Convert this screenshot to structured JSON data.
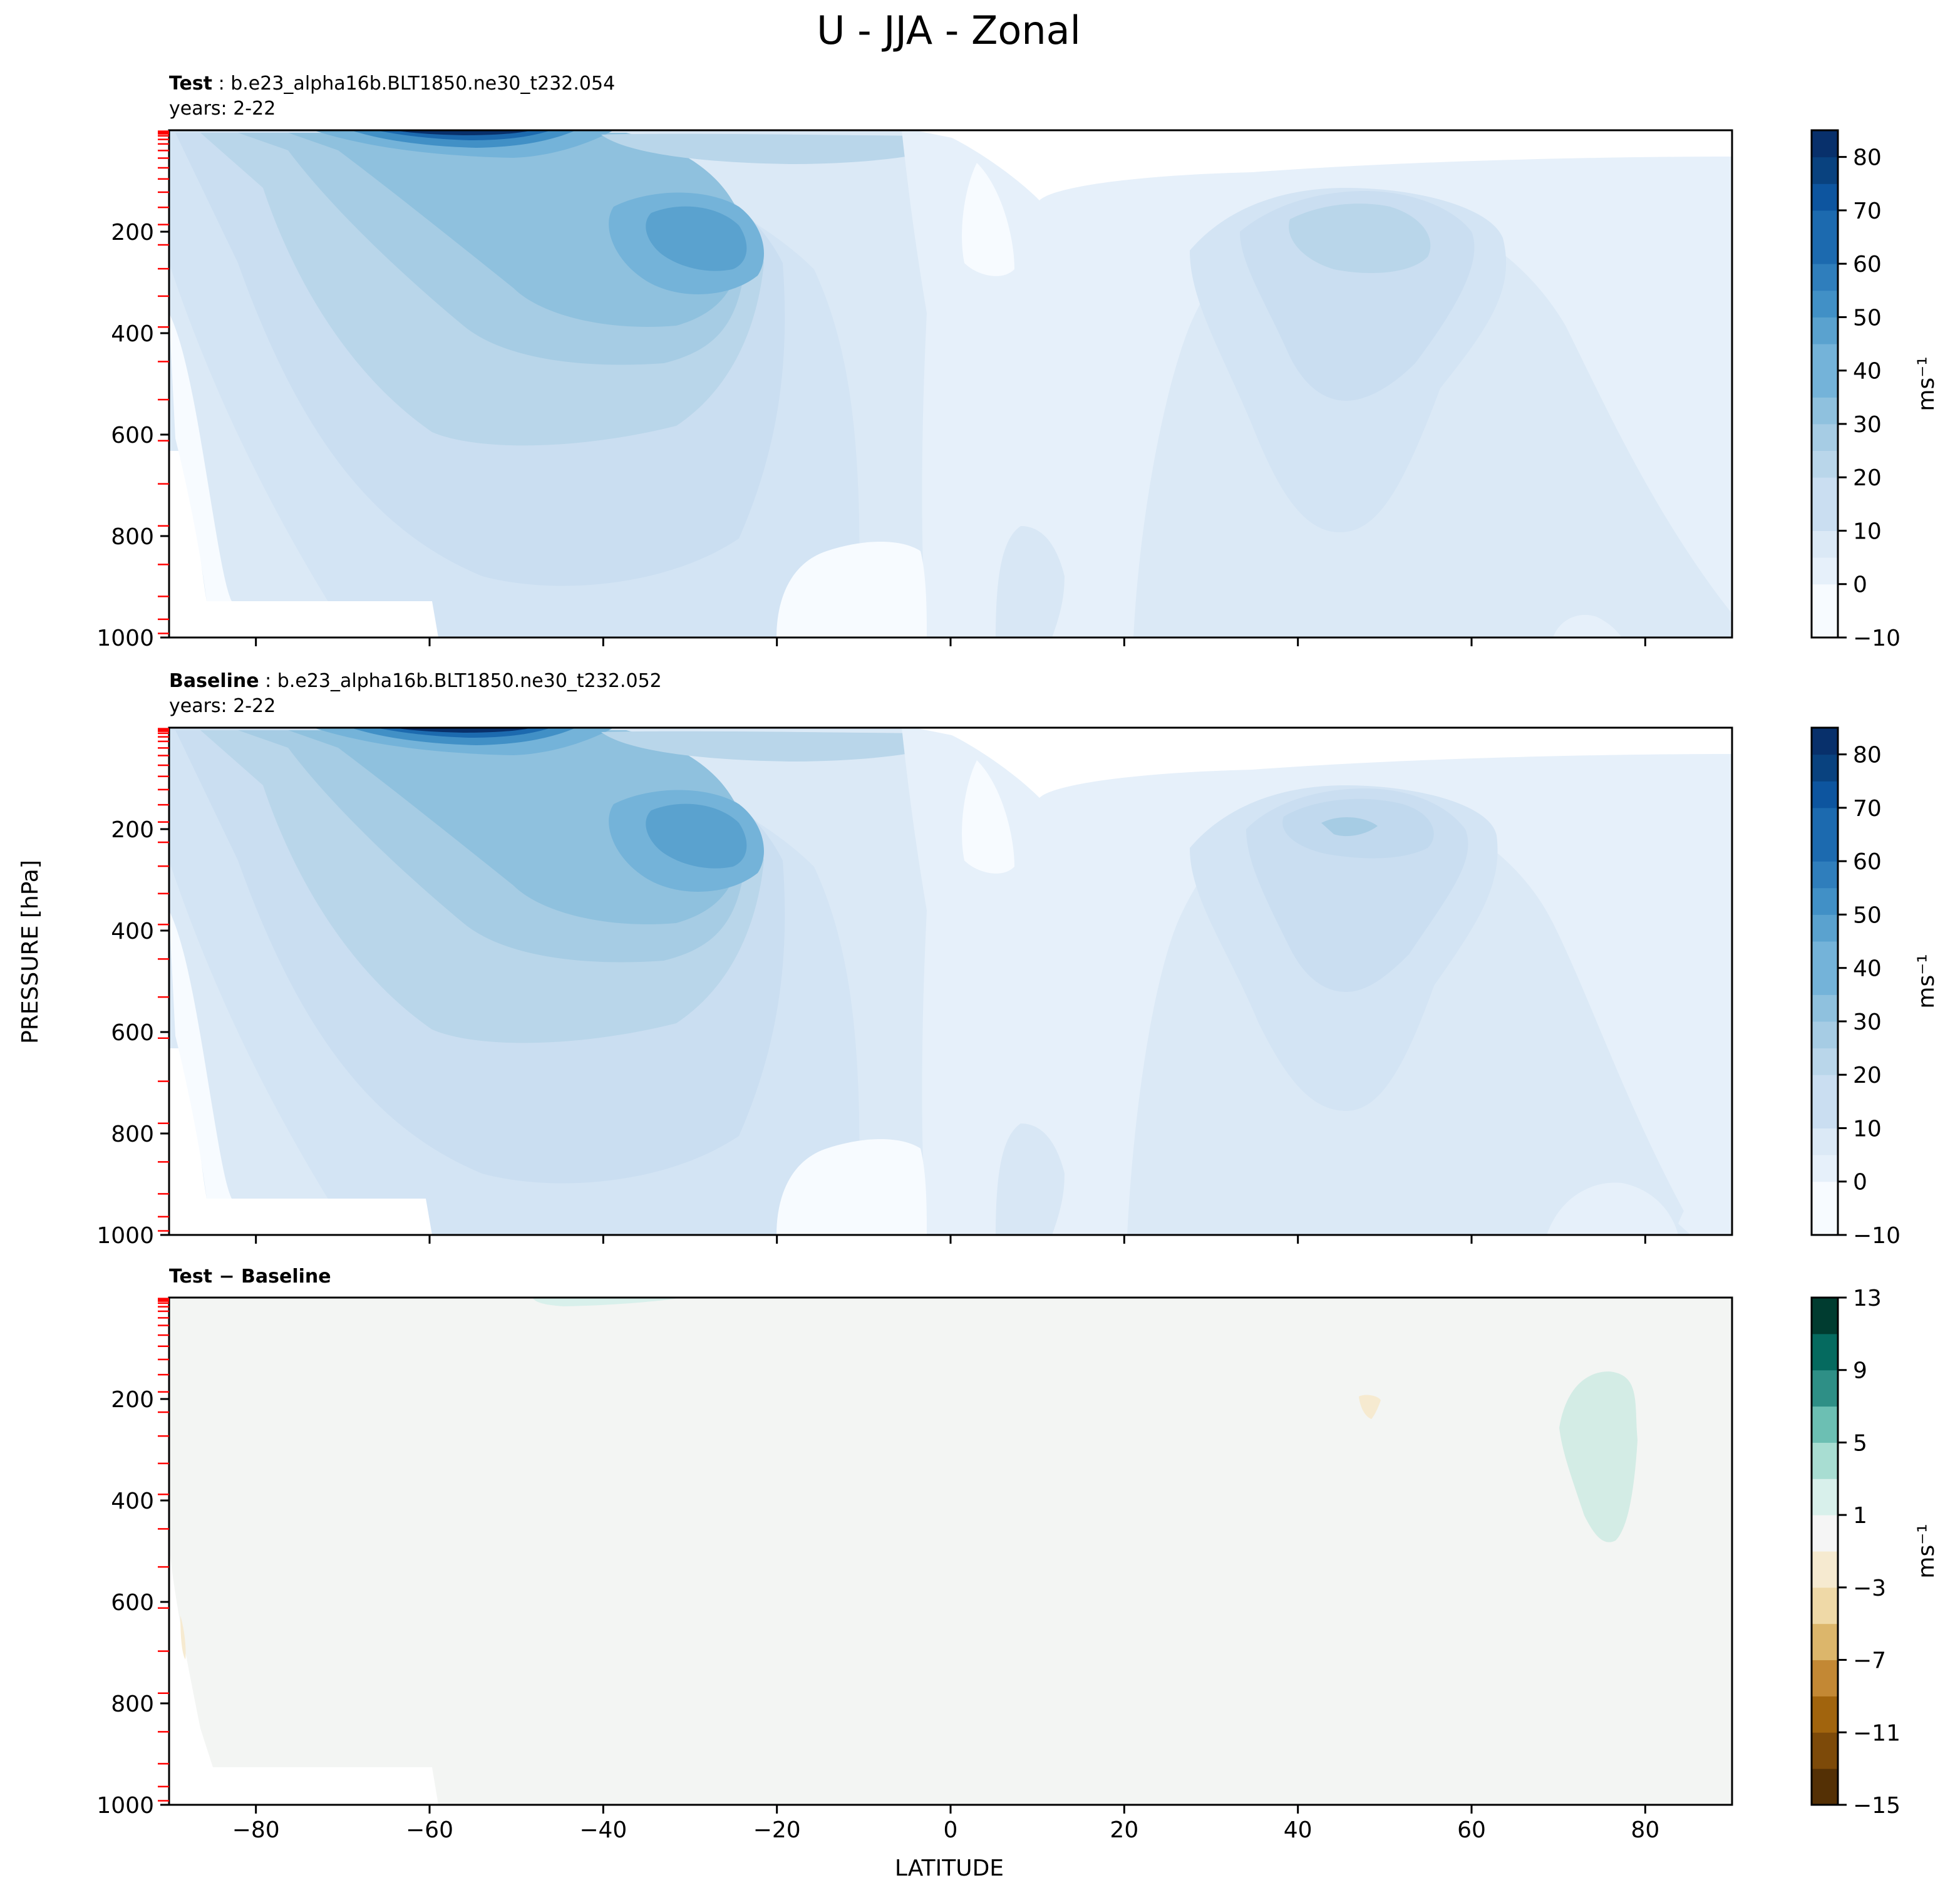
{
  "title": "U - JJA - Zonal",
  "ylabel": "PRESSURE [hPa]",
  "xlabel": "LATITUDE",
  "colors": {
    "blues": [
      "#f7fbff",
      "#e6f0fa",
      "#dbe9f6",
      "#cadef1",
      "#b9d6ea",
      "#a6cce4",
      "#8fc1de",
      "#74b3d9",
      "#5aa2cf",
      "#4190c6",
      "#2f7ebc",
      "#1c6aaf",
      "#0d559f",
      "#09427f",
      "#08306b"
    ],
    "brbg": [
      "#543005",
      "#7d4a09",
      "#a1640d",
      "#c38834",
      "#dcb66b",
      "#efd9a7",
      "#f6ead0",
      "#f5f5f5",
      "#d8f0eb",
      "#a8ddd2",
      "#6cbfb3",
      "#2e8f86",
      "#056a5f",
      "#003c30"
    ],
    "background_field": "#f3f5f3",
    "model_levels": "#ff0000"
  },
  "panels": [
    {
      "label_bold": "Test",
      "label_rest": ": b.e23_alpha16b.BLT1850.ne30_t232.054",
      "years": "years: 2-22",
      "colorbar_label": "ms⁻¹"
    },
    {
      "label_bold": "Baseline",
      "label_rest": ": b.e23_alpha16b.BLT1850.ne30_t232.052",
      "years": "years: 2-22",
      "colorbar_label": "ms⁻¹"
    },
    {
      "label_bold": "Test − Baseline",
      "label_rest": "",
      "years": "",
      "colorbar_label": "ms⁻¹"
    }
  ],
  "chart_data": [
    {
      "type": "heatmap",
      "title": "Test : b.e23_alpha16b.BLT1850.ne30_t232.054",
      "subtitle": "years: 2-22",
      "variable": "U (zonal wind), JJA, zonal mean",
      "xlim": [
        -90,
        90
      ],
      "ylim": [
        1000,
        0
      ],
      "xticks": [
        -80,
        -60,
        -40,
        -20,
        0,
        20,
        40,
        60,
        80
      ],
      "yticks": [
        200,
        400,
        600,
        800,
        1000
      ],
      "colorbar": {
        "levels": [
          -10,
          0,
          10,
          20,
          30,
          40,
          50,
          60,
          70,
          80
        ],
        "range": [
          -10,
          85
        ],
        "step": 5,
        "label": "ms⁻¹",
        "cmap": "Blues"
      },
      "features": [
        {
          "desc": "southern hemisphere jet core near tropopause top",
          "lat": -58,
          "pressure_hPa": 5,
          "u_ms": 85
        },
        {
          "desc": "southern subtropical jet",
          "lat": -30,
          "pressure_hPa": 200,
          "u_ms": 40
        },
        {
          "desc": "northern hemisphere jet",
          "lat": 45,
          "pressure_hPa": 200,
          "u_ms": 25
        },
        {
          "desc": "tropical easterlies",
          "lat": 0,
          "pressure_hPa": 100,
          "u_ms": -5
        }
      ]
    },
    {
      "type": "heatmap",
      "title": "Baseline : b.e23_alpha16b.BLT1850.ne30_t232.052",
      "subtitle": "years: 2-22",
      "variable": "U (zonal wind), JJA, zonal mean",
      "xlim": [
        -90,
        90
      ],
      "ylim": [
        1000,
        0
      ],
      "xticks": [
        -80,
        -60,
        -40,
        -20,
        0,
        20,
        40,
        60,
        80
      ],
      "yticks": [
        200,
        400,
        600,
        800,
        1000
      ],
      "colorbar": {
        "levels": [
          -10,
          0,
          10,
          20,
          30,
          40,
          50,
          60,
          70,
          80
        ],
        "range": [
          -10,
          85
        ],
        "step": 5,
        "label": "ms⁻¹",
        "cmap": "Blues"
      },
      "features": [
        {
          "desc": "southern hemisphere jet core near tropopause top",
          "lat": -58,
          "pressure_hPa": 5,
          "u_ms": 85
        },
        {
          "desc": "southern subtropical jet",
          "lat": -30,
          "pressure_hPa": 200,
          "u_ms": 40
        },
        {
          "desc": "northern hemisphere jet",
          "lat": 47,
          "pressure_hPa": 200,
          "u_ms": 25
        },
        {
          "desc": "tropical easterlies",
          "lat": 0,
          "pressure_hPa": 100,
          "u_ms": -5
        }
      ]
    },
    {
      "type": "heatmap",
      "title": "Test − Baseline",
      "xlabel": "LATITUDE",
      "xlim": [
        -90,
        90
      ],
      "ylim": [
        1000,
        0
      ],
      "xticks": [
        -80,
        -60,
        -40,
        -20,
        0,
        20,
        40,
        60,
        80
      ],
      "yticks": [
        200,
        400,
        600,
        800,
        1000
      ],
      "colorbar": {
        "levels": [
          -15,
          -11,
          -7,
          -3,
          1,
          5,
          9,
          13
        ],
        "range": [
          -15,
          13
        ],
        "step": 2,
        "label": "ms⁻¹",
        "cmap": "BrBG"
      },
      "features": [
        {
          "desc": "positive difference region",
          "lat": 74,
          "pressure_hPa": 300,
          "diff_ms": 2
        },
        {
          "desc": "small negative difference",
          "lat": 48,
          "pressure_hPa": 210,
          "diff_ms": -1
        },
        {
          "desc": "positive difference near top",
          "lat": -42,
          "pressure_hPa": 5,
          "diff_ms": 2
        }
      ]
    }
  ]
}
